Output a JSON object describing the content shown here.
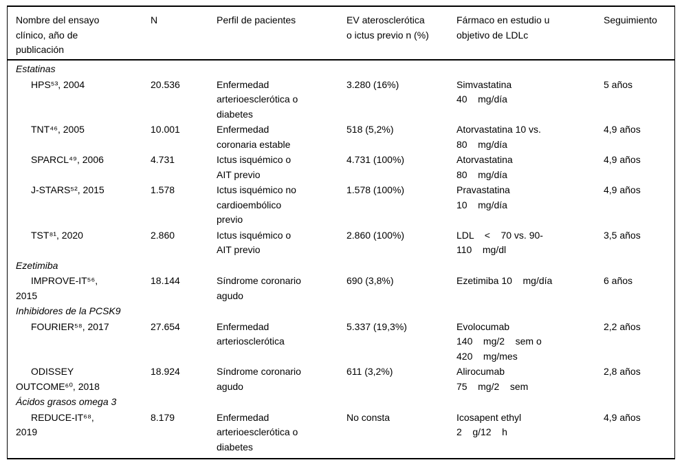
{
  "colors": {
    "text": "#000000",
    "border": "#000000",
    "background": "#ffffff"
  },
  "table": {
    "headers": [
      "Nombre del ensayo\nclínico, año de\npublicación",
      "N",
      "Perfil de pacientes",
      "EV aterosclerótica\no ictus previo n (%)",
      "Fármaco en estudio u\nobjetivo de LDLc",
      "Seguimiento"
    ],
    "sections": [
      {
        "title": "Estatinas",
        "rows": [
          {
            "name": "HPS⁵³, 2004",
            "n": "20.536",
            "profile": "Enfermedad\narterioesclerótica o\ndiabetes",
            "ev": "3.280 (16%)",
            "drug": "Simvastatina\n40    mg/día",
            "followup": "5 años"
          },
          {
            "name": "TNT⁴⁶, 2005",
            "n": "10.001",
            "profile": "Enfermedad\ncoronaria estable",
            "ev": "518 (5,2%)",
            "drug": "Atorvastatina 10 vs.\n80    mg/día",
            "followup": "4,9 años"
          },
          {
            "name": "SPARCL⁴⁹, 2006",
            "n": "4.731",
            "profile": "Ictus isquémico o\nAIT previo",
            "ev": "4.731 (100%)",
            "drug": "Atorvastatina\n80    mg/día",
            "followup": "4,9 años"
          },
          {
            "name": "J-STARS⁵², 2015",
            "n": "1.578",
            "profile": "Ictus isquémico no\ncardioembólico\nprevio",
            "ev": "1.578 (100%)",
            "drug": "Pravastatina\n10    mg/día",
            "followup": "4,9 años"
          },
          {
            "name": "TST⁸¹, 2020",
            "n": "2.860",
            "profile": "Ictus isquémico o\nAIT previo",
            "ev": "2.860 (100%)",
            "drug": "LDL    <    70 vs. 90-\n110    mg/dl",
            "followup": "3,5 años"
          }
        ]
      },
      {
        "title": "Ezetimiba",
        "rows": [
          {
            "name": "IMPROVE-IT⁵⁶,\n2015",
            "n": "18.144",
            "profile": "Síndrome coronario\nagudo",
            "ev": "690 (3,8%)",
            "drug": "Ezetimiba 10    mg/día",
            "followup": "6 años"
          }
        ]
      },
      {
        "title": "Inhibidores de la PCSK9",
        "rows": [
          {
            "name": "FOURIER⁵⁸, 2017",
            "n": "27.654",
            "profile": "Enfermedad\narteriosclerótica",
            "ev": "5.337 (19,3%)",
            "drug": "Evolocumab\n140    mg/2    sem o\n420    mg/mes",
            "followup": "2,2 años"
          },
          {
            "name": "ODISSEY\nOUTCOME⁶⁰, 2018",
            "n": "18.924",
            "profile": "Síndrome coronario\nagudo",
            "ev": "611 (3,2%)",
            "drug": "Alirocumab\n75    mg/2    sem",
            "followup": "2,8 años"
          }
        ]
      },
      {
        "title": "Ácidos grasos omega 3",
        "rows": [
          {
            "name": "REDUCE-IT⁶⁸,\n2019",
            "n": "8.179",
            "profile": "Enfermedad\narterioesclerótica o\ndiabetes",
            "ev": "No consta",
            "drug": "Icosapent ethyl\n2    g/12    h",
            "followup": "4,9 años"
          }
        ]
      }
    ]
  }
}
